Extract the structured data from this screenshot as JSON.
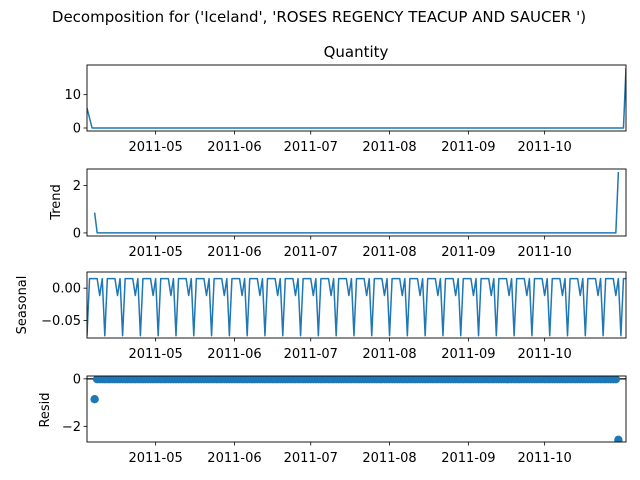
{
  "figure": {
    "suptitle": "Decomposition for ('Iceland', 'ROSES REGENCY TEACUP AND SAUCER ')"
  },
  "chart_data": [
    {
      "type": "line",
      "panel": "observed",
      "title": "Quantity",
      "ylabel": "",
      "x_start": "2011-04-04",
      "x_end": "2011-11-02",
      "date_ticks": [
        "2011-05",
        "2011-06",
        "2011-07",
        "2011-08",
        "2011-09",
        "2011-10"
      ],
      "ylim": [
        -0.9,
        18.9
      ],
      "yticks": [
        0,
        10
      ],
      "points": [
        [
          "2011-04-04",
          6
        ],
        [
          "2011-04-06",
          0
        ],
        [
          "2011-11-01",
          0
        ],
        [
          "2011-11-02",
          18
        ]
      ],
      "color": "#1f77b4"
    },
    {
      "type": "line",
      "panel": "trend",
      "title": "",
      "ylabel": "Trend",
      "x_start": "2011-04-04",
      "x_end": "2011-11-02",
      "date_ticks": [
        "2011-05",
        "2011-06",
        "2011-07",
        "2011-08",
        "2011-09",
        "2011-10"
      ],
      "ylim": [
        -0.13,
        2.7
      ],
      "yticks": [
        0,
        2
      ],
      "points": [
        [
          "2011-04-07",
          0.857
        ],
        [
          "2011-04-08",
          0
        ],
        [
          "2011-10-29",
          0
        ],
        [
          "2011-10-30",
          2.57
        ]
      ],
      "color": "#1f77b4"
    },
    {
      "type": "line",
      "panel": "seasonal",
      "title": "",
      "ylabel": "Seasonal",
      "x_start": "2011-04-04",
      "x_end": "2011-11-02",
      "date_ticks": [
        "2011-05",
        "2011-06",
        "2011-07",
        "2011-08",
        "2011-09",
        "2011-10"
      ],
      "ylim": [
        -0.077,
        0.025
      ],
      "yticks": [
        0.0,
        -0.05
      ],
      "yticklabels": [
        "0.00",
        "−0.05"
      ],
      "period": 7,
      "weekly_pattern": [
        -0.0735,
        0.0147,
        0.0147,
        0.0147,
        0.0147,
        -0.0113,
        0.0147
      ],
      "color": "#1f77b4"
    },
    {
      "type": "scatter",
      "panel": "resid",
      "title": "",
      "ylabel": "Resid",
      "x_start": "2011-04-04",
      "x_end": "2011-11-02",
      "date_ticks": [
        "2011-05",
        "2011-06",
        "2011-07",
        "2011-08",
        "2011-09",
        "2011-10"
      ],
      "ylim": [
        -2.66,
        0.12
      ],
      "yticks": [
        0,
        -2
      ],
      "yticklabels": [
        "0",
        "−2"
      ],
      "baseline": 0,
      "resid_range": [
        "2011-04-07",
        "2011-10-30"
      ],
      "typical_resid": -0.015,
      "outliers": [
        [
          "2011-04-07",
          -0.857
        ],
        [
          "2011-10-30",
          -2.57
        ]
      ],
      "color": "#1f77b4"
    }
  ]
}
